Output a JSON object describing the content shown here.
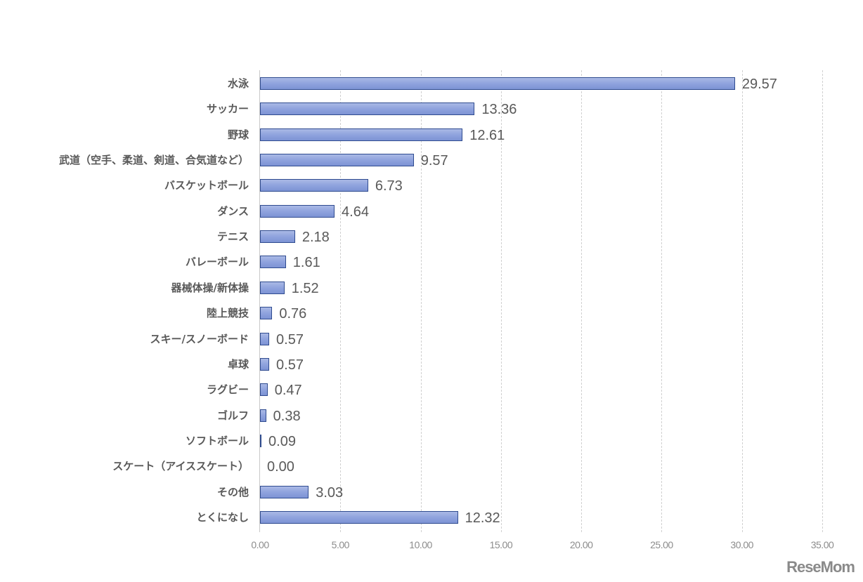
{
  "chart_data": {
    "type": "bar",
    "orientation": "horizontal",
    "title": "",
    "xlabel": "",
    "ylabel": "",
    "xlim": [
      0,
      35
    ],
    "grid": true,
    "legend": "none",
    "x_ticks": [
      "0.00",
      "5.00",
      "10.00",
      "15.00",
      "20.00",
      "25.00",
      "30.00",
      "35.00"
    ],
    "categories": [
      "水泳",
      "サッカー",
      "野球",
      "武道（空手、柔道、剣道、合気道など）",
      "バスケットボール",
      "ダンス",
      "テニス",
      "バレーボール",
      "器械体操/新体操",
      "陸上競技",
      "スキー/スノーボード",
      "卓球",
      "ラグビー",
      "ゴルフ",
      "ソフトボール",
      "スケート（アイススケート）",
      "その他",
      "とくになし"
    ],
    "values": [
      29.57,
      13.36,
      12.61,
      9.57,
      6.73,
      4.64,
      2.18,
      1.61,
      1.52,
      0.76,
      0.57,
      0.57,
      0.47,
      0.38,
      0.09,
      0.0,
      3.03,
      12.32
    ],
    "value_labels": [
      "29.57",
      "13.36",
      "12.61",
      "9.57",
      "6.73",
      "4.64",
      "2.18",
      "1.61",
      "1.52",
      "0.76",
      "0.57",
      "0.57",
      "0.47",
      "0.38",
      "0.09",
      "0.00",
      "3.03",
      "12.32"
    ],
    "colors": {
      "bar_fill": "#8fa3de",
      "bar_border": "#2f4b8f",
      "label": "#595959",
      "tick": "#8c8c8c"
    }
  },
  "watermark": {
    "text": "ReseMom"
  }
}
